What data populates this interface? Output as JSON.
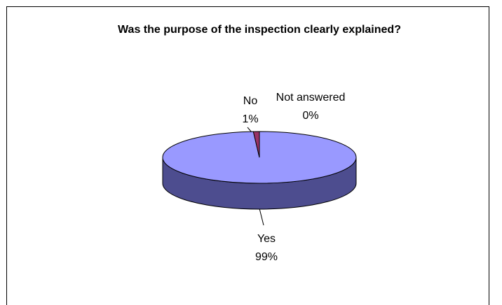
{
  "chart_data": {
    "type": "pie",
    "title": "Was the purpose of the inspection clearly explained?",
    "categories": [
      "Yes",
      "No",
      "Not answered"
    ],
    "values": [
      99,
      1,
      0
    ],
    "value_labels": [
      "99%",
      "1%",
      "0%"
    ],
    "colors": [
      "#9999ff",
      "#993366",
      "#ffffcc"
    ],
    "side_color": "#4d4d8f"
  }
}
